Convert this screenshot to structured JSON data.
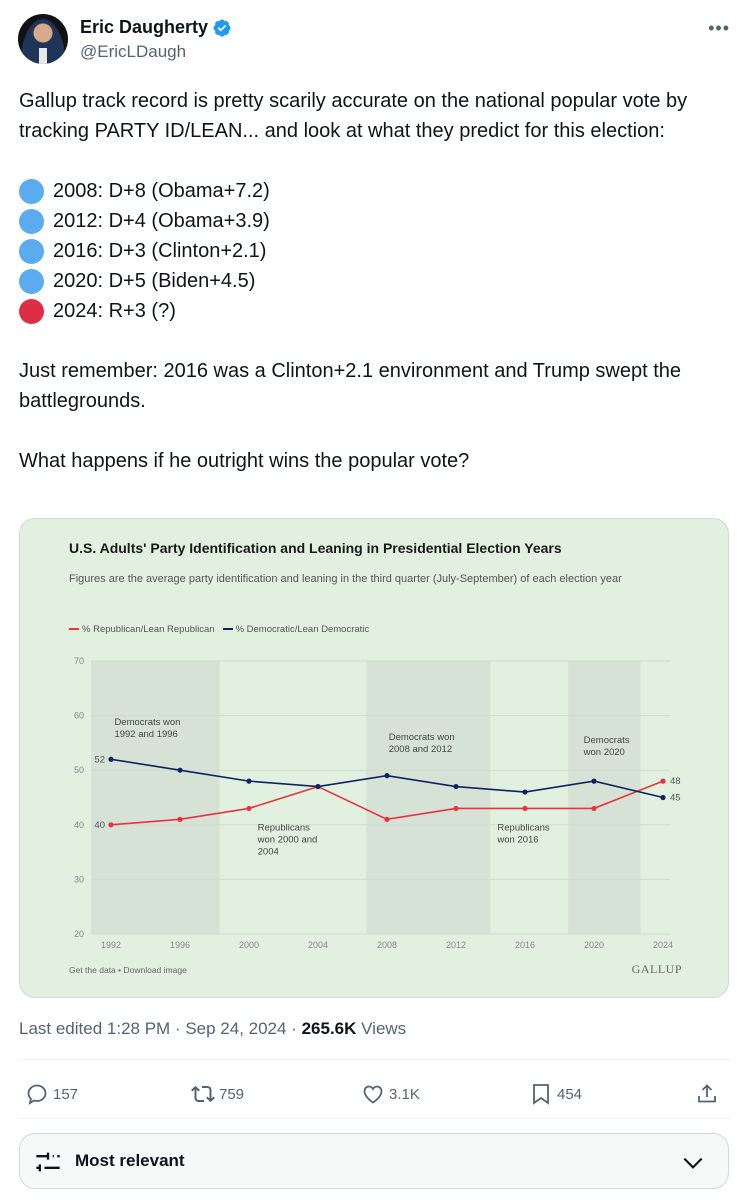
{
  "author": {
    "name": "Eric Daugherty",
    "handle": "@EricLDaugh",
    "verified": true,
    "more_icon": "•••"
  },
  "tweet": {
    "intro": "Gallup track record is pretty scarily accurate on the national popular vote by tracking PARTY ID/LEAN... and look at what they predict for this election:",
    "list": [
      {
        "dot_color": "#5aabef",
        "text": "2008: D+8 (Obama+7.2)"
      },
      {
        "dot_color": "#5aabef",
        "text": "2012: D+4 (Obama+3.9)"
      },
      {
        "dot_color": "#5aabef",
        "text": "2016: D+3 (Clinton+2.1)"
      },
      {
        "dot_color": "#5aabef",
        "text": "2020: D+5 (Biden+4.5)"
      },
      {
        "dot_color": "#dd2e44",
        "text": "2024: R+3 (?)"
      }
    ],
    "para2": "Just remember: 2016 was a Clinton+2.1 environment and Trump swept the battlegrounds.",
    "para3": "What happens if he outright wins the popular vote?"
  },
  "chart_data": {
    "type": "line",
    "title": "U.S. Adults' Party Identification and Leaning in Presidential Election Years",
    "subtitle": "Figures are the average party identification and leaning in the third quarter (July-September) of each election year",
    "x": [
      1992,
      1996,
      2000,
      2004,
      2008,
      2012,
      2016,
      2020,
      2024
    ],
    "xtick_labels": [
      "1992",
      "1996",
      "2000",
      "2004",
      "2008",
      "2012",
      "2016",
      "2020",
      "2024"
    ],
    "yticks": [
      20,
      30,
      40,
      50,
      60,
      70
    ],
    "ylim": [
      20,
      70
    ],
    "grid": true,
    "legend_position": "top-left",
    "series": [
      {
        "name": "% Republican/Lean Republican",
        "color": "#e8323c",
        "values": [
          40,
          41,
          43,
          47,
          41,
          43,
          43,
          43,
          48
        ]
      },
      {
        "name": "% Democratic/Lean Democratic",
        "color": "#0d2463",
        "values": [
          52,
          50,
          48,
          47,
          49,
          47,
          46,
          48,
          45
        ]
      }
    ],
    "data_labels": [
      {
        "series": 1,
        "index": 0,
        "text": "52"
      },
      {
        "series": 0,
        "index": 0,
        "text": "40"
      },
      {
        "series": 0,
        "index": 8,
        "text": "48"
      },
      {
        "series": 1,
        "index": 8,
        "text": "45"
      }
    ],
    "shaded_periods": [
      {
        "from": 1990.5,
        "to": 1998.3,
        "label": "Democrats won 1992 and 1996",
        "label_lines": [
          "Democrats won",
          "1992 and 1996"
        ]
      },
      {
        "from": 2006.8,
        "to": 2014.0,
        "label": "Democrats won 2008 and 2012",
        "label_lines": [
          "Democrats won",
          "2008 and 2012"
        ]
      },
      {
        "from": 2018.5,
        "to": 2022.7,
        "label": "Democrats won 2020",
        "label_lines": [
          "Democrats",
          "won 2020"
        ]
      }
    ],
    "annotations": [
      {
        "lines": [
          "Republicans",
          "won 2000 and",
          "2004"
        ],
        "x": 2000.5,
        "y": 39.5
      },
      {
        "lines": [
          "Republicans",
          "won 2016"
        ],
        "x": 2014.4,
        "y": 39.5
      }
    ],
    "footer_left": "Get the data • Download image",
    "footer_right": "GALLUP",
    "shade_color": "#d6e2d6",
    "background_color": "#e2f0e0"
  },
  "meta": {
    "edited": "Last edited 1:28 PM · Sep 24, 2024 · ",
    "views_count": "265.6K",
    "views_label": " Views"
  },
  "actions": {
    "replies": "157",
    "reposts": "759",
    "likes": "3.1K",
    "bookmarks": "454"
  },
  "sort": {
    "label": "Most relevant"
  }
}
